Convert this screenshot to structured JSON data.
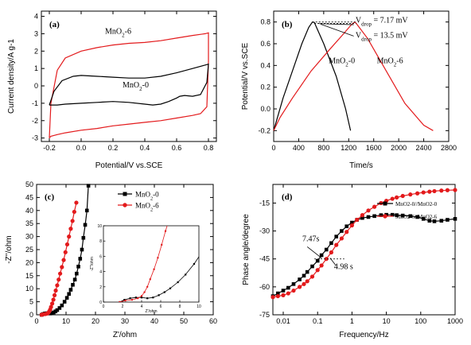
{
  "colors": {
    "red": "#e31a1c",
    "black": "#000000"
  },
  "chart_data": [
    {
      "panel": "(a)",
      "type": "line",
      "xlabel": "Potential/V vs.SCE",
      "ylabel": "Current density/A g-1",
      "xlim": [
        -0.25,
        0.85
      ],
      "ylim": [
        -3.2,
        4.3
      ],
      "xticks": [
        -0.2,
        0.0,
        0.2,
        0.4,
        0.6,
        0.8
      ],
      "xtick_labels": [
        "-0.2",
        "0.0",
        "0.2",
        "0.4",
        "0.6",
        "0.8"
      ],
      "yticks": [
        -3,
        -2,
        -1,
        0,
        1,
        2,
        3,
        4
      ],
      "ytick_labels": [
        "-3",
        "-2",
        "-1",
        "0",
        "1",
        "2",
        "3",
        "4"
      ],
      "annotations": [
        {
          "base": "MnO",
          "sub": "2",
          "tail": "-6",
          "x": 0.15,
          "y": 3.0
        },
        {
          "base": "MnO",
          "sub": "2",
          "tail": "-0",
          "x": 0.26,
          "y": -0.1
        }
      ],
      "series": [
        {
          "name": "MnO2-6",
          "color": "red",
          "x": [
            -0.2,
            -0.19,
            -0.15,
            -0.1,
            0.0,
            0.1,
            0.2,
            0.3,
            0.4,
            0.5,
            0.6,
            0.7,
            0.78,
            0.8,
            0.8,
            0.79,
            0.75,
            0.7,
            0.6,
            0.5,
            0.4,
            0.3,
            0.2,
            0.1,
            0.0,
            -0.1,
            -0.15,
            -0.19,
            -0.2
          ],
          "y": [
            -3.0,
            -1.0,
            0.9,
            1.6,
            2.0,
            2.2,
            2.35,
            2.45,
            2.5,
            2.6,
            2.75,
            2.9,
            3.0,
            3.05,
            1.4,
            -1.2,
            -1.6,
            -1.7,
            -1.85,
            -2.0,
            -2.1,
            -2.2,
            -2.3,
            -2.45,
            -2.55,
            -2.7,
            -2.8,
            -2.9,
            -3.0
          ]
        },
        {
          "name": "MnO2-0",
          "color": "black",
          "x": [
            -0.2,
            -0.17,
            -0.12,
            -0.05,
            0.0,
            0.1,
            0.2,
            0.3,
            0.4,
            0.5,
            0.6,
            0.7,
            0.78,
            0.8,
            0.79,
            0.75,
            0.7,
            0.65,
            0.62,
            0.6,
            0.55,
            0.5,
            0.45,
            0.4,
            0.3,
            0.2,
            0.1,
            0.0,
            -0.1,
            -0.15,
            -0.2
          ],
          "y": [
            -1.1,
            -0.3,
            0.3,
            0.55,
            0.6,
            0.55,
            0.5,
            0.45,
            0.45,
            0.55,
            0.75,
            1.0,
            1.2,
            1.25,
            0.2,
            -0.5,
            -0.6,
            -0.55,
            -0.6,
            -0.7,
            -0.9,
            -1.05,
            -1.1,
            -1.05,
            -0.95,
            -0.9,
            -0.95,
            -1.0,
            -1.05,
            -1.1,
            -1.1
          ]
        }
      ]
    },
    {
      "panel": "(b)",
      "type": "line",
      "xlabel": "Time/s",
      "ylabel": "Potential/V vs.SCE",
      "xlim": [
        0,
        2800
      ],
      "ylim": [
        -0.3,
        0.9
      ],
      "xticks": [
        0,
        400,
        800,
        1200,
        1600,
        2000,
        2400,
        2800
      ],
      "xtick_labels": [
        "0",
        "400",
        "800",
        "1200",
        "1600",
        "2000",
        "2400",
        "2800"
      ],
      "yticks": [
        -0.2,
        0.0,
        0.2,
        0.4,
        0.6,
        0.8
      ],
      "ytick_labels": [
        "-0.2",
        "0.0",
        "0.2",
        "0.4",
        "0.6",
        "0.8"
      ],
      "annotations": [
        {
          "base": "MnO",
          "sub": "2",
          "tail": "-0",
          "x": 880,
          "y": 0.42
        },
        {
          "base": "MnO",
          "sub": "2",
          "tail": "-6",
          "x": 1650,
          "y": 0.42
        },
        {
          "base": "V",
          "sub": "drop",
          "tail": " = 7.17 mV",
          "x": 1310,
          "y": 0.795
        },
        {
          "base": "V",
          "sub": "drop",
          "tail": " = 13.5 mV",
          "x": 1310,
          "y": 0.655
        }
      ],
      "series": [
        {
          "name": "MnO2-0",
          "color": "black",
          "x": [
            0,
            50,
            150,
            300,
            450,
            560,
            620,
            650,
            800,
            1000,
            1150,
            1230
          ],
          "y": [
            -0.2,
            -0.1,
            0.1,
            0.35,
            0.6,
            0.75,
            0.8,
            0.795,
            0.6,
            0.3,
            0.0,
            -0.2
          ]
        },
        {
          "name": "MnO2-6",
          "color": "red",
          "x": [
            0,
            100,
            300,
            600,
            900,
            1100,
            1250,
            1300,
            1320,
            1500,
            1800,
            2100,
            2400,
            2550
          ],
          "y": [
            -0.2,
            -0.08,
            0.1,
            0.35,
            0.55,
            0.68,
            0.78,
            0.8,
            0.787,
            0.65,
            0.35,
            0.05,
            -0.15,
            -0.2
          ]
        }
      ]
    },
    {
      "panel": "(c)",
      "type": "scatter",
      "xlabel": "Z'/ohm",
      "ylabel": "-Z''/ohm",
      "xlim": [
        0,
        60
      ],
      "ylim": [
        0,
        50
      ],
      "xticks": [
        0,
        10,
        20,
        30,
        40,
        50,
        60
      ],
      "xtick_labels": [
        "0",
        "10",
        "20",
        "30",
        "40",
        "50",
        "60"
      ],
      "yticks": [
        0,
        5,
        10,
        15,
        20,
        25,
        30,
        35,
        40,
        45,
        50
      ],
      "ytick_labels": [
        "0",
        "5",
        "10",
        "15",
        "20",
        "25",
        "30",
        "35",
        "40",
        "45",
        "50"
      ],
      "legend": [
        {
          "base": "MnO",
          "sub": "2",
          "tail": "-0",
          "color": "black",
          "marker": "square"
        },
        {
          "base": "MnO",
          "sub": "2",
          "tail": "-6",
          "color": "red",
          "marker": "circle"
        }
      ],
      "series": [
        {
          "name": "MnO2-0",
          "color": "black",
          "x": [
            1.7,
            2.2,
            2.8,
            3.4,
            4.0,
            4.6,
            5.2,
            5.8,
            6.4,
            7.0,
            7.8,
            8.6,
            9.5,
            10.3,
            11.0,
            11.6,
            12.3,
            13.0,
            13.6,
            14.2,
            14.8,
            15.4,
            15.9,
            16.5,
            17.1,
            17.6
          ],
          "y": [
            0.0,
            0.3,
            0.5,
            0.6,
            0.6,
            0.5,
            0.6,
            0.9,
            1.3,
            1.8,
            2.6,
            3.6,
            5.0,
            6.5,
            8.0,
            9.6,
            11.5,
            13.5,
            15.8,
            18.5,
            21.5,
            25.0,
            29.5,
            34.5,
            40.0,
            49.5
          ]
        },
        {
          "name": "MnO2-6",
          "color": "red",
          "x": [
            1.7,
            2.3,
            3.0,
            3.6,
            4.0,
            4.3,
            4.6,
            4.9,
            5.3,
            5.7,
            6.1,
            6.5,
            7.0,
            7.5,
            8.0,
            8.6,
            9.2,
            9.8,
            10.4,
            11.0,
            11.6,
            12.2,
            12.8,
            13.5
          ],
          "y": [
            0.0,
            0.2,
            0.3,
            0.5,
            0.8,
            1.3,
            2.0,
            3.0,
            4.3,
            5.8,
            7.5,
            9.3,
            11.3,
            13.5,
            15.8,
            18.3,
            21.0,
            24.0,
            27.0,
            30.0,
            33.0,
            36.0,
            39.5,
            43.0
          ]
        }
      ],
      "inset": {
        "xlim": [
          0,
          10
        ],
        "ylim": [
          0,
          10
        ],
        "xticks": [
          0,
          2,
          4,
          6,
          8,
          10
        ],
        "xtick_labels": [
          "0",
          "2",
          "4",
          "6",
          "8",
          "10"
        ],
        "yticks": [
          0,
          2,
          4,
          6,
          8,
          10
        ],
        "ytick_labels": [
          "0",
          "2",
          "4",
          "6",
          "8",
          "10"
        ],
        "xlabel": "Z'/ohm",
        "ylabel": "-Z''/ohm"
      }
    },
    {
      "panel": "(d)",
      "type": "scatter",
      "xlabel": "Frequency/Hz",
      "ylabel": "Phase angle/degree",
      "xscale": "log",
      "xlim": [
        0.005,
        1000
      ],
      "ylim": [
        -75,
        -5
      ],
      "xticks": [
        0.01,
        0.1,
        1,
        10,
        100,
        1000
      ],
      "xtick_labels": [
        "0.01",
        "0.1",
        "1",
        "10",
        "100",
        "1000"
      ],
      "yticks": [
        -75,
        -60,
        -45,
        -30,
        -15
      ],
      "ytick_labels": [
        "-75",
        "-60",
        "-45",
        "-30",
        "-15"
      ],
      "legend": [
        {
          "text": "MnO2-0//MnO2-0",
          "color": "black",
          "marker": "square"
        },
        {
          "text": "MnO2-6//MnO2-6",
          "color": "red",
          "marker": "circle"
        }
      ],
      "annotations": [
        {
          "text": "4.98 s",
          "x": 0.3,
          "y": -50.5
        },
        {
          "text": "7.47s",
          "x": 0.036,
          "y": -35.5
        }
      ],
      "series": [
        {
          "name": "MnO2-0//MnO2-0",
          "color": "black",
          "x": [
            0.005,
            0.007,
            0.01,
            0.014,
            0.02,
            0.03,
            0.04,
            0.05,
            0.07,
            0.1,
            0.13,
            0.18,
            0.25,
            0.35,
            0.5,
            0.7,
            1,
            1.4,
            2,
            3,
            4.5,
            7,
            10,
            15,
            20,
            30,
            50,
            80,
            120,
            180,
            250,
            400,
            600,
            1000
          ],
          "y": [
            -65,
            -63.5,
            -62,
            -60.5,
            -58.5,
            -56,
            -54,
            -52,
            -49,
            -46,
            -43,
            -40,
            -36.5,
            -33,
            -30,
            -27.5,
            -25.5,
            -24,
            -23,
            -22.5,
            -22,
            -21.5,
            -21.3,
            -21.3,
            -21.5,
            -21.7,
            -22,
            -22.5,
            -23.5,
            -24.5,
            -24.8,
            -24.5,
            -24,
            -23.5
          ]
        },
        {
          "name": "MnO2-6//MnO2-6",
          "color": "red",
          "x": [
            0.005,
            0.007,
            0.01,
            0.014,
            0.02,
            0.03,
            0.04,
            0.05,
            0.07,
            0.1,
            0.13,
            0.18,
            0.25,
            0.35,
            0.5,
            0.7,
            1,
            1.4,
            2,
            3,
            4.5,
            7,
            10,
            15,
            20,
            30,
            50,
            80,
            120,
            180,
            250,
            400,
            600,
            1000
          ],
          "y": [
            -65.5,
            -65,
            -64.5,
            -63.5,
            -62,
            -60,
            -58.5,
            -57,
            -54.5,
            -51,
            -48.5,
            -45,
            -41.5,
            -37.5,
            -34,
            -30.5,
            -27,
            -24,
            -21.5,
            -19,
            -17,
            -15,
            -13.8,
            -12.7,
            -12,
            -11.2,
            -10.4,
            -9.8,
            -9.3,
            -8.9,
            -8.6,
            -8.3,
            -8.1,
            -8
          ]
        }
      ]
    }
  ]
}
